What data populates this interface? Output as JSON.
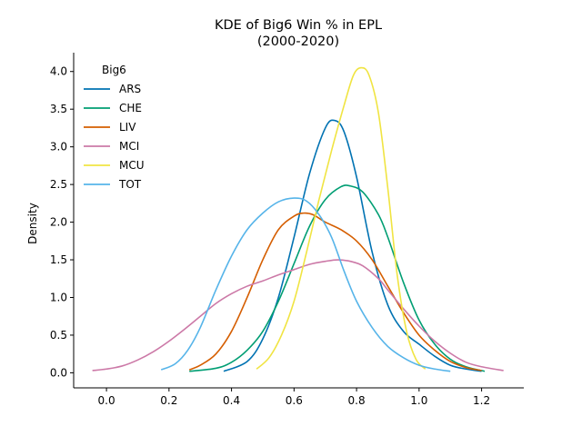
{
  "chart_data": {
    "type": "line",
    "title": "KDE of Big6 Win % in EPL",
    "subtitle": "(2000-2020)",
    "xlabel": "",
    "ylabel": "Density",
    "xlim": [
      -0.105,
      1.335
    ],
    "ylim": [
      -0.2,
      4.25
    ],
    "xticks": [
      0.0,
      0.2,
      0.4,
      0.6,
      0.8,
      1.0,
      1.2
    ],
    "xtick_labels": [
      "0.0",
      "0.2",
      "0.4",
      "0.6",
      "0.8",
      "1.0",
      "1.2"
    ],
    "yticks": [
      0.0,
      0.5,
      1.0,
      1.5,
      2.0,
      2.5,
      3.0,
      3.5,
      4.0
    ],
    "ytick_labels": [
      "0.0",
      "0.5",
      "1.0",
      "1.5",
      "2.0",
      "2.5",
      "3.0",
      "3.5",
      "4.0"
    ],
    "grid": false,
    "legend": {
      "title": "Big6",
      "position": "top-left"
    },
    "series": [
      {
        "name": "ARS",
        "color": "#0072b2",
        "x": [
          0.375,
          0.45,
          0.5,
          0.55,
          0.6,
          0.65,
          0.7,
          0.73,
          0.76,
          0.8,
          0.85,
          0.9,
          0.95,
          1.0,
          1.05,
          1.1,
          1.15,
          1.2
        ],
        "y": [
          0.02,
          0.15,
          0.45,
          1.0,
          1.8,
          2.65,
          3.25,
          3.35,
          3.2,
          2.6,
          1.6,
          0.9,
          0.55,
          0.38,
          0.22,
          0.1,
          0.05,
          0.02
        ]
      },
      {
        "name": "CHE",
        "color": "#009e73",
        "x": [
          0.265,
          0.35,
          0.4,
          0.45,
          0.5,
          0.55,
          0.6,
          0.65,
          0.7,
          0.75,
          0.78,
          0.82,
          0.87,
          0.9,
          0.95,
          1.0,
          1.05,
          1.1,
          1.15,
          1.21
        ],
        "y": [
          0.02,
          0.06,
          0.14,
          0.3,
          0.55,
          0.95,
          1.45,
          1.95,
          2.3,
          2.47,
          2.48,
          2.4,
          2.1,
          1.8,
          1.2,
          0.7,
          0.38,
          0.18,
          0.08,
          0.02
        ]
      },
      {
        "name": "LIV",
        "color": "#d55e00",
        "x": [
          0.265,
          0.3,
          0.35,
          0.4,
          0.45,
          0.5,
          0.55,
          0.6,
          0.63,
          0.66,
          0.7,
          0.75,
          0.8,
          0.85,
          0.9,
          0.95,
          1.0,
          1.05,
          1.1,
          1.15,
          1.2
        ],
        "y": [
          0.04,
          0.1,
          0.25,
          0.55,
          1.0,
          1.5,
          1.9,
          2.08,
          2.12,
          2.1,
          2.0,
          1.9,
          1.75,
          1.5,
          1.15,
          0.8,
          0.5,
          0.3,
          0.15,
          0.07,
          0.03
        ]
      },
      {
        "name": "MCI",
        "color": "#cc79a7",
        "x": [
          -0.045,
          0.0,
          0.05,
          0.1,
          0.15,
          0.2,
          0.25,
          0.3,
          0.35,
          0.4,
          0.45,
          0.5,
          0.55,
          0.6,
          0.65,
          0.7,
          0.74,
          0.78,
          0.82,
          0.87,
          0.9,
          0.95,
          1.0,
          1.05,
          1.1,
          1.15,
          1.2,
          1.27
        ],
        "y": [
          0.03,
          0.05,
          0.09,
          0.17,
          0.28,
          0.42,
          0.58,
          0.75,
          0.92,
          1.05,
          1.15,
          1.22,
          1.3,
          1.37,
          1.44,
          1.48,
          1.5,
          1.48,
          1.42,
          1.25,
          1.1,
          0.85,
          0.62,
          0.42,
          0.26,
          0.14,
          0.08,
          0.03
        ]
      },
      {
        "name": "MCU",
        "color": "#f0e442",
        "x": [
          0.48,
          0.52,
          0.56,
          0.6,
          0.64,
          0.68,
          0.72,
          0.76,
          0.79,
          0.815,
          0.84,
          0.87,
          0.9,
          0.93,
          0.96,
          0.99,
          1.02
        ],
        "y": [
          0.05,
          0.2,
          0.5,
          0.95,
          1.6,
          2.3,
          2.95,
          3.55,
          3.95,
          4.05,
          3.95,
          3.45,
          2.45,
          1.3,
          0.55,
          0.18,
          0.05
        ]
      },
      {
        "name": "TOT",
        "color": "#56b4e9",
        "x": [
          0.175,
          0.22,
          0.26,
          0.3,
          0.35,
          0.4,
          0.45,
          0.5,
          0.55,
          0.6,
          0.64,
          0.68,
          0.72,
          0.76,
          0.8,
          0.85,
          0.9,
          0.95,
          1.0,
          1.05,
          1.1
        ],
        "y": [
          0.04,
          0.12,
          0.3,
          0.6,
          1.1,
          1.55,
          1.9,
          2.12,
          2.27,
          2.32,
          2.28,
          2.1,
          1.8,
          1.35,
          0.95,
          0.6,
          0.35,
          0.2,
          0.1,
          0.05,
          0.02
        ]
      }
    ]
  }
}
